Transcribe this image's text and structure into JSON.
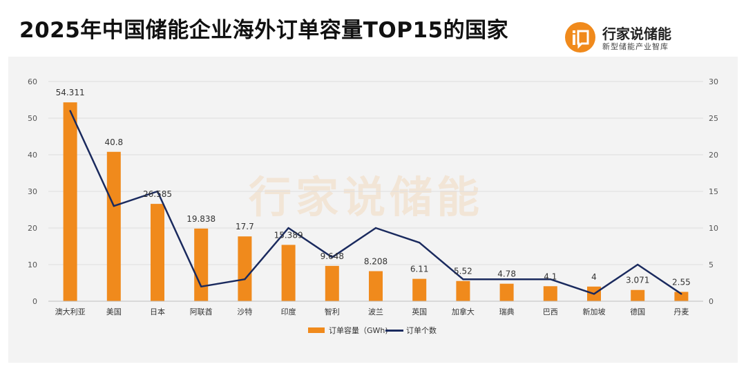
{
  "title": "2025年中国储能企业海外订单容量TOP15的国家",
  "brand": {
    "name": "行家说储能",
    "subtitle": "新型储能产业智库",
    "logo_text": "i"
  },
  "watermark": "行家说储能",
  "colors": {
    "bar": "#f08a1c",
    "line": "#1a2a5e",
    "grid": "#dddddd"
  },
  "chart_data": {
    "type": "bar",
    "categories": [
      "澳大利亚",
      "美国",
      "日本",
      "阿联酋",
      "沙特",
      "印度",
      "智利",
      "波兰",
      "英国",
      "加拿大",
      "瑞典",
      "巴西",
      "新加坡",
      "德国",
      "丹麦"
    ],
    "series": [
      {
        "name": "订单容量（GWh)",
        "type": "bar",
        "axis": "left",
        "values": [
          54.311,
          40.8,
          26.585,
          19.838,
          17.7,
          15.389,
          9.648,
          8.208,
          6.11,
          5.52,
          4.78,
          4.1,
          4,
          3.071,
          2.55
        ],
        "labels": [
          "54.311",
          "40.8",
          "26.585",
          "19.838",
          "17.7",
          "15.389",
          "9.648",
          "8.208",
          "6.11",
          "5.52",
          "4.78",
          "4.1",
          "4",
          "3.071",
          "2.55"
        ]
      },
      {
        "name": "订单个数",
        "type": "line",
        "axis": "right",
        "values": [
          26,
          13,
          15,
          2,
          3,
          10,
          6,
          10,
          8,
          3,
          3,
          3,
          1,
          5,
          1
        ]
      }
    ],
    "y_left": {
      "min": 0,
      "max": 60,
      "ticks": [
        0,
        10,
        20,
        30,
        40,
        50,
        60
      ]
    },
    "y_right": {
      "min": 0,
      "max": 30,
      "ticks": [
        0,
        5,
        10,
        15,
        20,
        25,
        30
      ]
    },
    "grid": true,
    "legend_position": "bottom"
  }
}
